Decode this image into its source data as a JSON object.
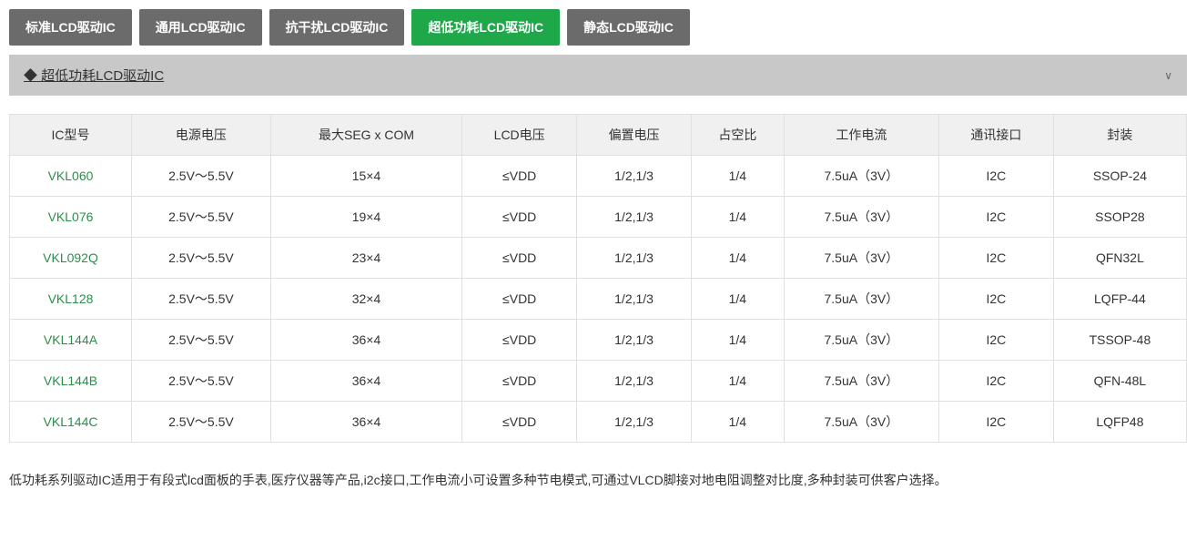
{
  "tabs": [
    {
      "label": "标准LCD驱动IC",
      "active": false
    },
    {
      "label": "通用LCD驱动IC",
      "active": false
    },
    {
      "label": "抗干扰LCD驱动IC",
      "active": false
    },
    {
      "label": "超低功耗LCD驱动IC",
      "active": true
    },
    {
      "label": "静态LCD驱动IC",
      "active": false
    }
  ],
  "accordion": {
    "title": "超低功耗LCD驱动IC",
    "chevron": "∨"
  },
  "table": {
    "columns": [
      "IC型号",
      "电源电压",
      "最大SEG x COM",
      "LCD电压",
      "偏置电压",
      "占空比",
      "工作电流",
      "通讯接口",
      "封装"
    ],
    "rows": [
      [
        "VKL060",
        "2.5V～5.5V",
        "15×4",
        "≤VDD",
        "1/2,1/3",
        "1/4",
        "7.5uA（3V）",
        "I2C",
        "SSOP-24"
      ],
      [
        "VKL076",
        "2.5V～5.5V",
        "19×4",
        "≤VDD",
        "1/2,1/3",
        "1/4",
        "7.5uA（3V）",
        "I2C",
        "SSOP28"
      ],
      [
        "VKL092Q",
        "2.5V～5.5V",
        "23×4",
        "≤VDD",
        "1/2,1/3",
        "1/4",
        "7.5uA（3V）",
        "I2C",
        "QFN32L"
      ],
      [
        "VKL128",
        "2.5V～5.5V",
        "32×4",
        "≤VDD",
        "1/2,1/3",
        "1/4",
        "7.5uA（3V）",
        "I2C",
        "LQFP-44"
      ],
      [
        "VKL144A",
        "2.5V～5.5V",
        "36×4",
        "≤VDD",
        "1/2,1/3",
        "1/4",
        "7.5uA（3V）",
        "I2C",
        "TSSOP-48"
      ],
      [
        "VKL144B",
        "2.5V～5.5V",
        "36×4",
        "≤VDD",
        "1/2,1/3",
        "1/4",
        "7.5uA（3V）",
        "I2C",
        "QFN-48L"
      ],
      [
        "VKL144C",
        "2.5V～5.5V",
        "36×4",
        "≤VDD",
        "1/2,1/3",
        "1/4",
        "7.5uA（3V）",
        "I2C",
        "LQFP48"
      ]
    ]
  },
  "description": "低功耗系列驱动IC适用于有段式lcd面板的手表,医疗仪器等产品,i2c接口,工作电流小可设置多种节电模式,可通过VLCD脚接对地电阻调整对比度,多种封装可供客户选择。",
  "styles": {
    "tab_bg": "#6b6b6b",
    "tab_active_bg": "#1fa84a",
    "tab_text": "#ffffff",
    "accordion_bg": "#c8c8c8",
    "th_bg": "#f0f0f0",
    "border_color": "#e0e0e0",
    "model_color": "#2a8f4a",
    "text_color": "#333333"
  }
}
